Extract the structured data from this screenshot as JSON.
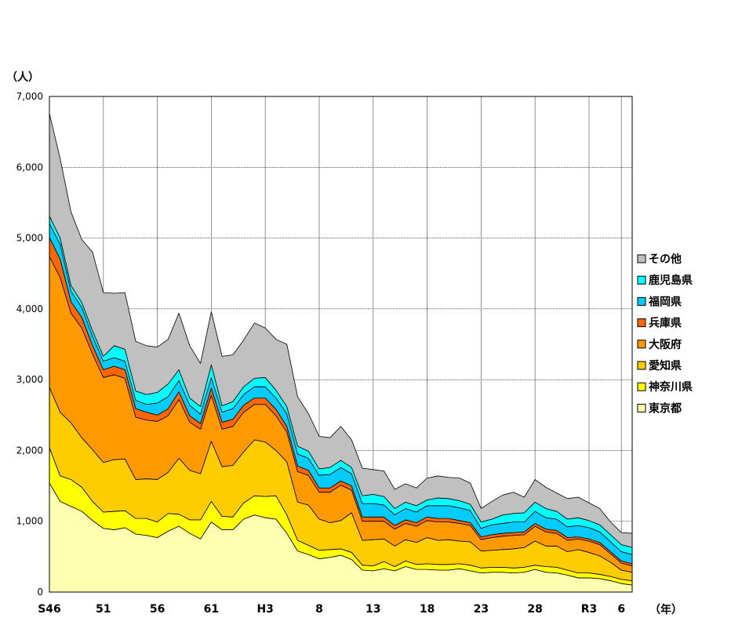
{
  "chart_data": {
    "type": "area",
    "stacked": true,
    "ylabel": "（人）",
    "xlabel": "（年）",
    "ylim": [
      0,
      7000
    ],
    "yticks": [
      0,
      1000,
      2000,
      3000,
      4000,
      5000,
      6000,
      7000
    ],
    "ytick_labels": [
      "0",
      "1,000",
      "2,000",
      "3,000",
      "4,000",
      "5,000",
      "6,000",
      "7,000"
    ],
    "x_tick_labels": [
      {
        "x": 0,
        "label": "S46"
      },
      {
        "x": 5,
        "label": "51"
      },
      {
        "x": 10,
        "label": "56"
      },
      {
        "x": 15,
        "label": "61"
      },
      {
        "x": 20,
        "label": "H3"
      },
      {
        "x": 25,
        "label": "8"
      },
      {
        "x": 30,
        "label": "13"
      },
      {
        "x": 35,
        "label": "18"
      },
      {
        "x": 40,
        "label": "23"
      },
      {
        "x": 45,
        "label": "28"
      },
      {
        "x": 50,
        "label": "R3"
      },
      {
        "x": 53,
        "label": "6"
      }
    ],
    "grid": true,
    "legend_position": "right",
    "series": [
      {
        "name": "東京都",
        "color": "#FFFFB0",
        "values": [
          1540,
          1280,
          1210,
          1140,
          1010,
          900,
          880,
          910,
          820,
          800,
          770,
          860,
          930,
          830,
          750,
          990,
          880,
          880,
          1030,
          1090,
          1050,
          1030,
          830,
          580,
          530,
          470,
          490,
          520,
          460,
          310,
          300,
          330,
          300,
          360,
          320,
          320,
          310,
          310,
          330,
          300,
          270,
          280,
          280,
          270,
          280,
          320,
          280,
          270,
          240,
          200,
          200,
          190,
          160,
          120,
          100
        ]
      },
      {
        "name": "神奈川県",
        "color": "#FFFF00",
        "values": [
          500,
          360,
          380,
          340,
          270,
          230,
          260,
          240,
          220,
          240,
          220,
          250,
          170,
          190,
          270,
          290,
          190,
          180,
          230,
          270,
          300,
          330,
          260,
          150,
          130,
          120,
          110,
          90,
          100,
          70,
          70,
          100,
          60,
          80,
          70,
          80,
          80,
          80,
          70,
          80,
          70,
          70,
          70,
          70,
          70,
          60,
          80,
          80,
          70,
          70,
          70,
          60,
          60,
          60,
          60
        ]
      },
      {
        "name": "愛知県",
        "color": "#FFCC00",
        "values": [
          850,
          900,
          800,
          700,
          730,
          700,
          730,
          730,
          550,
          560,
          600,
          580,
          790,
          700,
          650,
          850,
          700,
          730,
          720,
          790,
          770,
          640,
          750,
          540,
          570,
          440,
          380,
          400,
          560,
          350,
          370,
          320,
          290,
          300,
          310,
          370,
          340,
          350,
          320,
          330,
          240,
          240,
          250,
          270,
          280,
          340,
          290,
          300,
          260,
          330,
          290,
          260,
          200,
          130,
          120
        ]
      },
      {
        "name": "大阪府",
        "color": "#FF9900",
        "values": [
          1850,
          1900,
          1550,
          1550,
          1350,
          1200,
          1200,
          1140,
          880,
          830,
          820,
          800,
          830,
          680,
          630,
          650,
          530,
          550,
          560,
          500,
          530,
          490,
          420,
          430,
          420,
          380,
          430,
          500,
          320,
          270,
          260,
          250,
          240,
          230,
          230,
          240,
          260,
          250,
          250,
          230,
          160,
          180,
          190,
          190,
          180,
          210,
          200,
          180,
          160,
          150,
          160,
          160,
          120,
          100,
          90
        ]
      },
      {
        "name": "兵庫県",
        "color": "#FF6600",
        "values": [
          270,
          260,
          160,
          150,
          120,
          110,
          120,
          120,
          120,
          110,
          90,
          100,
          110,
          90,
          80,
          100,
          100,
          100,
          100,
          90,
          90,
          90,
          80,
          80,
          70,
          60,
          60,
          60,
          60,
          60,
          60,
          60,
          50,
          50,
          50,
          50,
          50,
          50,
          40,
          40,
          40,
          40,
          40,
          40,
          40,
          40,
          40,
          40,
          40,
          30,
          30,
          30,
          30,
          30,
          30
        ]
      },
      {
        "name": "福岡県",
        "color": "#00CCFF",
        "values": [
          200,
          210,
          150,
          140,
          130,
          120,
          120,
          120,
          120,
          110,
          170,
          170,
          160,
          150,
          130,
          150,
          140,
          150,
          150,
          160,
          160,
          160,
          180,
          170,
          170,
          180,
          190,
          190,
          170,
          190,
          190,
          170,
          150,
          160,
          150,
          160,
          180,
          180,
          180,
          170,
          120,
          140,
          140,
          150,
          140,
          170,
          160,
          160,
          150,
          160,
          160,
          150,
          140,
          130,
          130
        ]
      },
      {
        "name": "鹿児島県",
        "color": "#00FFFF",
        "values": [
          100,
          90,
          80,
          70,
          80,
          70,
          170,
          170,
          130,
          140,
          150,
          180,
          150,
          100,
          110,
          180,
          90,
          100,
          110,
          120,
          130,
          110,
          100,
          110,
          100,
          90,
          100,
          100,
          90,
          110,
          130,
          120,
          90,
          90,
          90,
          80,
          110,
          100,
          100,
          90,
          90,
          80,
          120,
          120,
          130,
          130,
          130,
          110,
          110,
          110,
          100,
          100,
          100,
          100,
          100
        ]
      },
      {
        "name": "その他",
        "color": "#C0C0C0",
        "values": [
          1450,
          1120,
          1040,
          890,
          1110,
          900,
          740,
          800,
          700,
          690,
          640,
          630,
          800,
          740,
          610,
          750,
          700,
          660,
          660,
          780,
          700,
          720,
          880,
          700,
          530,
          460,
          420,
          480,
          390,
          390,
          350,
          360,
          270,
          260,
          250,
          310,
          310,
          300,
          320,
          300,
          190,
          250,
          280,
          300,
          220,
          320,
          300,
          260,
          290,
          290,
          250,
          230,
          180,
          170,
          200
        ]
      }
    ]
  }
}
